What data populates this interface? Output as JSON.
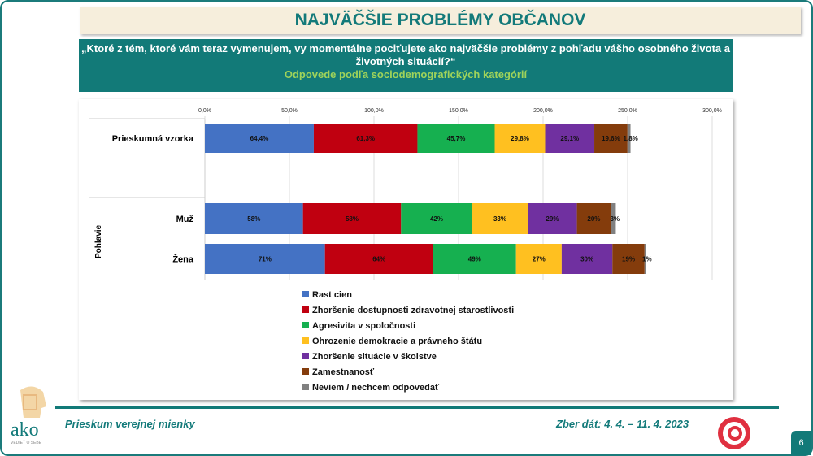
{
  "header": {
    "title": "NAJVÄČŠIE PROBLÉMY OBČANOV",
    "question": "„Ktoré z tém, ktoré vám teraz vymenujem, vy momentálne pociťujete ako najväčšie problémy z pohľadu vášho osobného života a životných situácií?“",
    "subtitle": "Odpovede podľa sociodemografických kategórií"
  },
  "chart_data": {
    "type": "bar",
    "orientation": "horizontal",
    "stacked": true,
    "xlim": [
      0,
      300
    ],
    "x_ticks": [
      "0,0%",
      "50,0%",
      "100,0%",
      "150,0%",
      "200,0%",
      "250,0%",
      "300,0%"
    ],
    "group_label": "Pohlavie",
    "categories": [
      "Prieskumná vzorka",
      "Muž",
      "Žena"
    ],
    "series": [
      {
        "name": "Rast cien",
        "color": "#4472c4",
        "values": [
          64.4,
          58,
          71
        ],
        "labels": [
          "64,4%",
          "58%",
          "71%"
        ]
      },
      {
        "name": "Zhoršenie dostupnosti zdravotnej starostlivosti",
        "color": "#c00010",
        "values": [
          61.3,
          58,
          64
        ],
        "labels": [
          "61,3%",
          "58%",
          "64%"
        ]
      },
      {
        "name": "Agresivita v spoločnosti",
        "color": "#16b050",
        "values": [
          45.7,
          42,
          49
        ],
        "labels": [
          "45,7%",
          "42%",
          "49%"
        ]
      },
      {
        "name": "Ohrozenie demokracie a právneho štátu",
        "color": "#ffc020",
        "values": [
          29.8,
          33,
          27
        ],
        "labels": [
          "29,8%",
          "33%",
          "27%"
        ]
      },
      {
        "name": "Zhoršenie situácie v školstve",
        "color": "#7030a0",
        "values": [
          29.1,
          29,
          30
        ],
        "labels": [
          "29,1%",
          "29%",
          "30%"
        ]
      },
      {
        "name": "Zamestnanosť",
        "color": "#843c0c",
        "values": [
          19.6,
          20,
          19
        ],
        "labels": [
          "19,6%",
          "20%",
          "19%"
        ]
      },
      {
        "name": "Neviem / nechcem odpovedať",
        "color": "#808080",
        "values": [
          1.8,
          3,
          1
        ],
        "labels": [
          "1,8%",
          "3%",
          "1%"
        ]
      }
    ]
  },
  "footer": {
    "left": "Prieskum verejnej mienky",
    "right": "Zber dát: 4. 4. – 11. 4. 2023",
    "page": "6",
    "logo_text": "ako",
    "logo_tagline": "VEDIEŤ O SEBE"
  }
}
